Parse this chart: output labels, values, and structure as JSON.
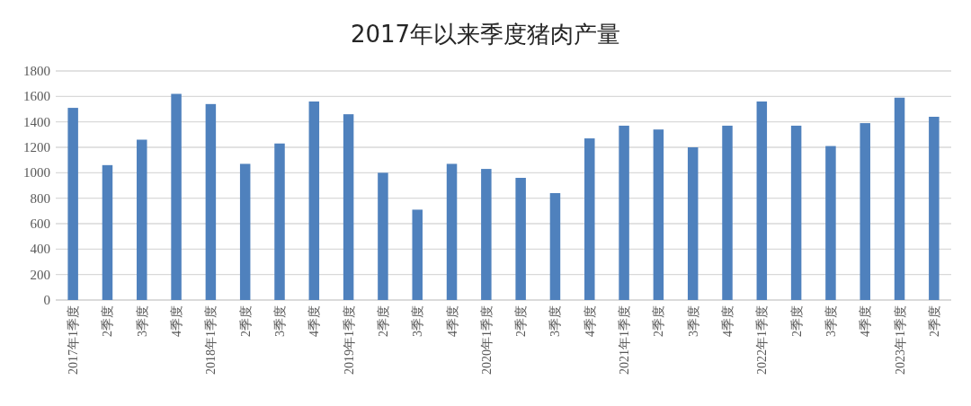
{
  "chart_data": {
    "type": "bar",
    "title": "2017年以来季度猪肉产量",
    "categories": [
      "2017年1季度",
      "2季度",
      "3季度",
      "4季度",
      "2018年1季度",
      "2季度",
      "3季度",
      "4季度",
      "2019年1季度",
      "2季度",
      "3季度",
      "4季度",
      "2020年1季度",
      "2季度",
      "3季度",
      "4季度",
      "2021年1季度",
      "2季度",
      "3季度",
      "4季度",
      "2022年1季度",
      "2季度",
      "3季度",
      "4季度",
      "2023年1季度",
      "2季度"
    ],
    "values": [
      1510,
      1060,
      1260,
      1620,
      1540,
      1070,
      1230,
      1560,
      1460,
      1000,
      710,
      1070,
      1030,
      960,
      840,
      1270,
      1370,
      1340,
      1200,
      1370,
      1560,
      1370,
      1210,
      1390,
      1590,
      1440
    ],
    "color": "#4f81bd",
    "ylim": [
      0,
      1800
    ],
    "yticks": [
      0,
      200,
      400,
      600,
      800,
      1000,
      1200,
      1400,
      1600,
      1800
    ],
    "grid": "y"
  }
}
